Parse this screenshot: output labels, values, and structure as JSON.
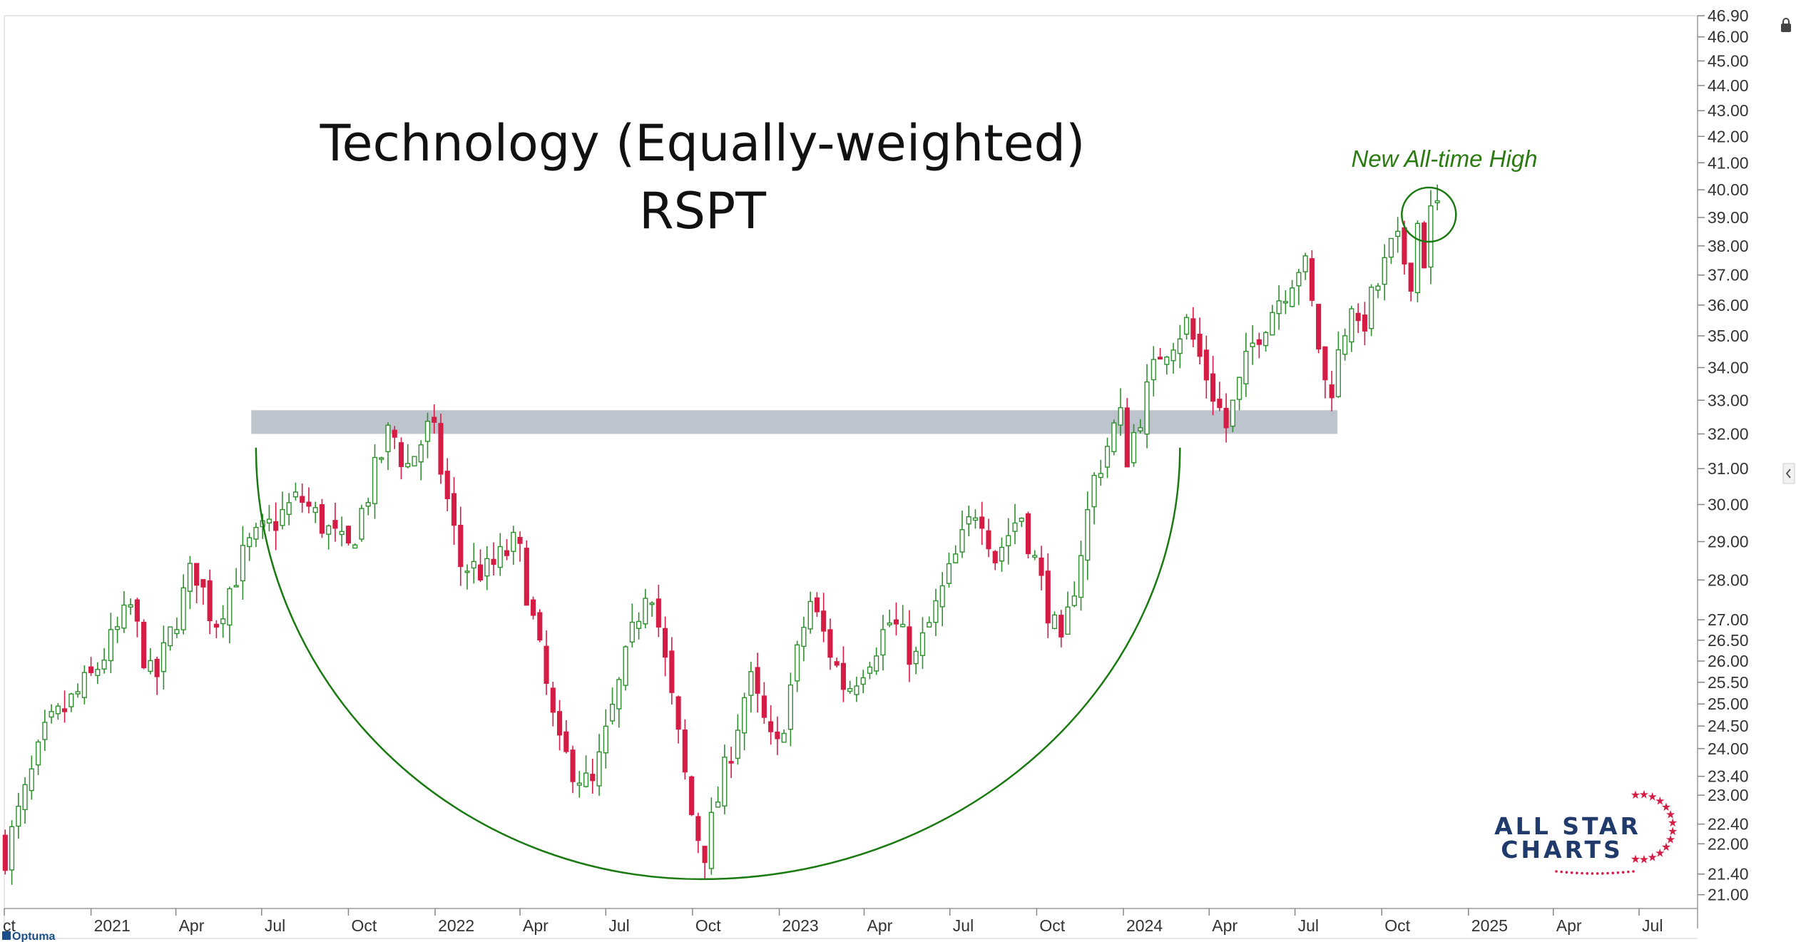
{
  "chart_data": {
    "type": "candlestick",
    "title": "Technology (Equally-weighted)",
    "subtitle": "RSPT",
    "annotation": "New All-time High",
    "y_scale": "log",
    "ylim": [
      20.9,
      46.9
    ],
    "y_ticks": [
      21.0,
      21.4,
      22.0,
      22.4,
      23.0,
      23.4,
      24.0,
      24.5,
      25.0,
      25.5,
      26.0,
      26.5,
      27.0,
      28.0,
      29.0,
      30.0,
      31.0,
      32.0,
      33.0,
      34.0,
      35.0,
      36.0,
      37.0,
      38.0,
      39.0,
      40.0,
      41.0,
      42.0,
      43.0,
      44.0,
      45.0,
      46.0,
      46.9
    ],
    "y_tick_labels": [
      "21.00",
      "21.40",
      "22.00",
      "22.40",
      "23.00",
      "23.40",
      "24.00",
      "24.50",
      "25.00",
      "25.50",
      "26.00",
      "26.50",
      "27.00",
      "28.00",
      "29.00",
      "30.00",
      "31.00",
      "32.00",
      "33.00",
      "34.00",
      "35.00",
      "36.00",
      "37.00",
      "38.00",
      "39.00",
      "40.00",
      "41.00",
      "42.00",
      "43.00",
      "44.00",
      "45.00",
      "46.00",
      "46.90"
    ],
    "xlim": [
      "2020-10-01",
      "2025-09-01"
    ],
    "x_ticks": [
      {
        "label": "ct",
        "date": "2020-10-01"
      },
      {
        "label": "2021",
        "date": "2021-01-01"
      },
      {
        "label": "Apr",
        "date": "2021-04-01"
      },
      {
        "label": "Jul",
        "date": "2021-07-01"
      },
      {
        "label": "Oct",
        "date": "2021-10-01"
      },
      {
        "label": "2022",
        "date": "2022-01-01"
      },
      {
        "label": "Apr",
        "date": "2022-04-01"
      },
      {
        "label": "Jul",
        "date": "2022-07-01"
      },
      {
        "label": "Oct",
        "date": "2022-10-01"
      },
      {
        "label": "2023",
        "date": "2023-01-01"
      },
      {
        "label": "Apr",
        "date": "2023-04-01"
      },
      {
        "label": "Jul",
        "date": "2023-07-01"
      },
      {
        "label": "Oct",
        "date": "2023-10-01"
      },
      {
        "label": "2024",
        "date": "2024-01-01"
      },
      {
        "label": "Apr",
        "date": "2024-04-01"
      },
      {
        "label": "Jul",
        "date": "2024-07-01"
      },
      {
        "label": "Oct",
        "date": "2024-10-01"
      },
      {
        "label": "2025",
        "date": "2025-01-01"
      },
      {
        "label": "Apr",
        "date": "2025-04-01"
      },
      {
        "label": "Jul",
        "date": "2025-07-01"
      }
    ],
    "resistance_zone": {
      "start": "2021-06-20",
      "end": "2024-08-15",
      "low": 32.0,
      "high": 32.7
    },
    "rounding_bottom": {
      "start": "2021-06-25",
      "end": "2024-03-01",
      "bottom_date": "2022-10-10",
      "bottom_price": 21.3,
      "rim_price": 31.6
    },
    "highlight_circle": {
      "date": "2024-11-20",
      "price": 39.1
    },
    "anchors": [
      [
        "2020-10-02",
        21.8
      ],
      [
        "2020-11-15",
        24.4
      ],
      [
        "2021-01-01",
        25.6
      ],
      [
        "2021-02-12",
        27.3
      ],
      [
        "2021-03-08",
        25.4
      ],
      [
        "2021-04-20",
        28.4
      ],
      [
        "2021-05-12",
        26.9
      ],
      [
        "2021-06-15",
        28.8
      ],
      [
        "2021-08-10",
        30.2
      ],
      [
        "2021-09-30",
        28.7
      ],
      [
        "2021-11-15",
        32.2
      ],
      [
        "2021-12-01",
        31.0
      ],
      [
        "2021-12-28",
        32.3
      ],
      [
        "2022-01-28",
        28.4
      ],
      [
        "2022-02-25",
        28.2
      ],
      [
        "2022-03-29",
        29.0
      ],
      [
        "2022-05-12",
        24.0
      ],
      [
        "2022-06-16",
        23.1
      ],
      [
        "2022-08-16",
        28.2
      ],
      [
        "2022-09-30",
        22.6
      ],
      [
        "2022-10-13",
        21.8
      ],
      [
        "2022-11-30",
        25.6
      ],
      [
        "2022-12-28",
        23.8
      ],
      [
        "2023-02-02",
        27.5
      ],
      [
        "2023-03-13",
        25.3
      ],
      [
        "2023-04-30",
        27.0
      ],
      [
        "2023-05-25",
        26.0
      ],
      [
        "2023-07-31",
        30.1
      ],
      [
        "2023-08-18",
        28.6
      ],
      [
        "2023-09-14",
        29.8
      ],
      [
        "2023-10-27",
        26.2
      ],
      [
        "2023-12-01",
        30.7
      ],
      [
        "2023-12-28",
        32.6
      ],
      [
        "2024-01-05",
        31.4
      ],
      [
        "2024-02-09",
        34.5
      ],
      [
        "2024-03-08",
        35.4
      ],
      [
        "2024-04-19",
        32.2
      ],
      [
        "2024-05-20",
        35.0
      ],
      [
        "2024-07-10",
        37.6
      ],
      [
        "2024-08-05",
        33.0
      ],
      [
        "2024-08-30",
        36.2
      ],
      [
        "2024-09-06",
        35.0
      ],
      [
        "2024-10-15",
        38.2
      ],
      [
        "2024-11-01",
        37.0
      ],
      [
        "2024-11-08",
        38.8
      ],
      [
        "2024-11-15",
        37.6
      ],
      [
        "2024-11-22",
        39.1
      ],
      [
        "2024-11-29",
        39.4
      ]
    ]
  },
  "logo": {
    "line1": "ALL STAR",
    "line2": "CHARTS"
  },
  "footer": {
    "brand": "Optuma"
  },
  "colors": {
    "up": "#2f8f2f",
    "down": "#d51c45",
    "curve": "#1a7a11",
    "zone": "#b9c1ca",
    "axis": "#555555",
    "logo": "#1f3a6b",
    "star": "#d51c45"
  },
  "icons": {
    "lock": "lock-icon",
    "collapse": "chevron-left-icon"
  }
}
